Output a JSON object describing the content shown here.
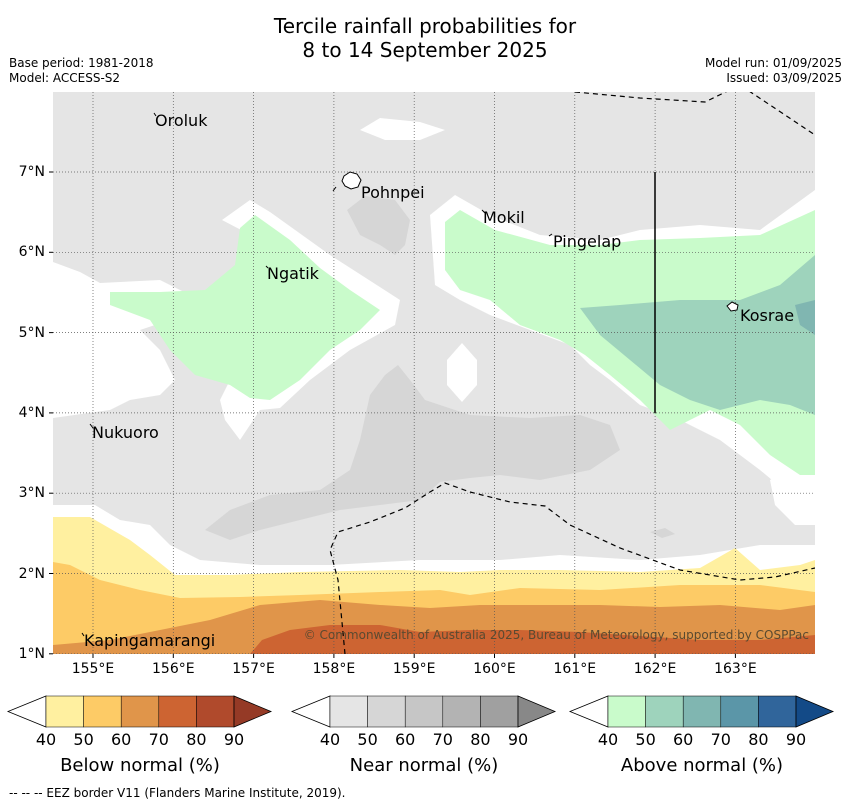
{
  "title": {
    "line1": "Tercile rainfall probabilities for",
    "line2": "8 to 14 September 2025"
  },
  "meta": {
    "base_period": "Base period: 1981-2018",
    "model": "Model: ACCESS-S2",
    "model_run": "Model run: 01/09/2025",
    "issued": "Issued: 03/09/2025"
  },
  "axes": {
    "lon_ticks": [
      "155°E",
      "156°E",
      "157°E",
      "158°E",
      "159°E",
      "160°E",
      "161°E",
      "162°E",
      "163°E"
    ],
    "lat_ticks": [
      "7°N",
      "6°N",
      "5°N",
      "4°N",
      "3°N",
      "2°N",
      "1°N"
    ]
  },
  "places": [
    "Oroluk",
    "Pohnpei",
    "Mokil",
    "Pingelap",
    "Ngatik",
    "Kosrae",
    "Nukuoro",
    "Kapingamarangi"
  ],
  "copyright": "© Commonwealth of Australia 2025, Bureau of Meteorology, supported by COSPPac",
  "colorbars": [
    {
      "name": "Below normal (%)",
      "ticks": [
        "40",
        "50",
        "60",
        "70",
        "80",
        "90"
      ],
      "colors": [
        "#fff0a0",
        "#fdcb66",
        "#e0954a",
        "#cd6432",
        "#b04a2c",
        "#953a26"
      ]
    },
    {
      "name": "Near normal (%)",
      "ticks": [
        "40",
        "50",
        "60",
        "70",
        "80",
        "90"
      ],
      "colors": [
        "#e5e5e5",
        "#d6d6d6",
        "#c6c6c6",
        "#b3b3b3",
        "#a0a0a0",
        "#888888"
      ]
    },
    {
      "name": "Above normal (%)",
      "ticks": [
        "40",
        "50",
        "60",
        "70",
        "80",
        "90"
      ],
      "colors": [
        "#c9fbcb",
        "#9ed3bc",
        "#80b6b1",
        "#5b96a8",
        "#30659b",
        "#134a87"
      ]
    }
  ],
  "footer": "--  --  -- EEZ border V11 (Flanders Marine Institute, 2019)."
}
